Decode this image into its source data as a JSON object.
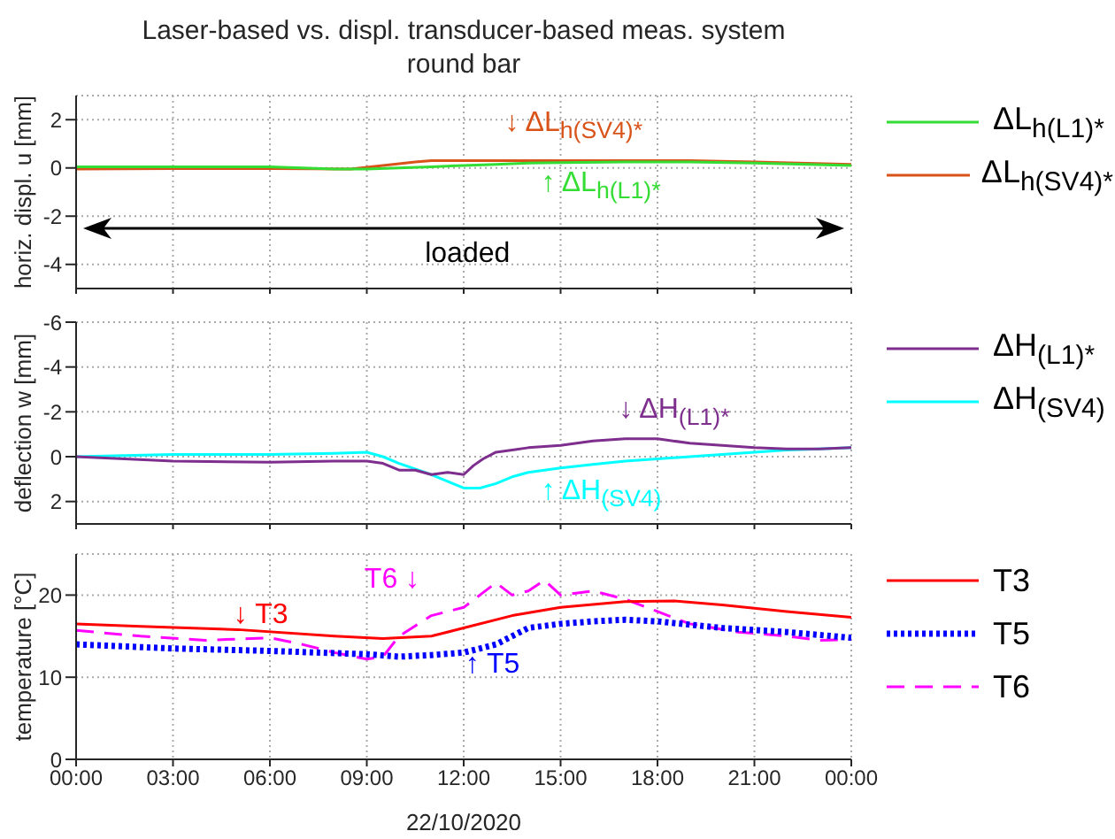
{
  "chart_data": [
    {
      "type": "line",
      "title": "Laser-based vs. displ. transducer-based meas. system round bar",
      "ylabel": "horiz. displ. u [mm]",
      "xlim": [
        0,
        24
      ],
      "xticks": [
        {
          "value": 0,
          "label": null
        },
        {
          "value": 3,
          "label": null
        },
        {
          "value": 6,
          "label": null
        },
        {
          "value": 9,
          "label": null
        },
        {
          "value": 12,
          "label": null
        },
        {
          "value": 15,
          "label": null
        },
        {
          "value": 18,
          "label": null
        },
        {
          "value": 21,
          "label": null
        },
        {
          "value": 24,
          "label": null
        }
      ],
      "ylim": [
        -5,
        3
      ],
      "yticks": [
        -4,
        -2,
        0,
        2
      ],
      "grid": true,
      "legend": "right",
      "tick_labels": "y",
      "line_style": "solid",
      "marker": "none",
      "series": [
        {
          "name": "ΔL$_{h(L1)*}$",
          "color": "#33dd33",
          "x": [
            0,
            3,
            6,
            8,
            9,
            10,
            11,
            12,
            13,
            14,
            15,
            17,
            19,
            21,
            24
          ],
          "values": [
            0.05,
            0.05,
            0.05,
            -0.05,
            -0.05,
            0,
            0.05,
            0.1,
            0.15,
            0.2,
            0.22,
            0.25,
            0.25,
            0.2,
            0.1
          ]
        },
        {
          "name": "ΔL$_{h(SV4)*}$",
          "color": "#d95319",
          "x": [
            0,
            3,
            6,
            8.5,
            9.5,
            10.5,
            11,
            12,
            14,
            16,
            17,
            19,
            21,
            24
          ],
          "values": [
            -0.05,
            -0.03,
            -0.03,
            -0.05,
            0.1,
            0.25,
            0.3,
            0.3,
            0.3,
            0.3,
            0.3,
            0.3,
            0.25,
            0.15
          ]
        }
      ],
      "annotations": [
        "↓ ΔL$_{h(SV4)*}$",
        "↑ ΔL$_{h(L1)*}$",
        "loaded"
      ]
    },
    {
      "type": "line",
      "ylabel": "deflection w [mm]",
      "xlim": [
        0,
        24
      ],
      "xticks": [
        {
          "value": 0,
          "label": null
        },
        {
          "value": 3,
          "label": null
        },
        {
          "value": 6,
          "label": null
        },
        {
          "value": 9,
          "label": null
        },
        {
          "value": 12,
          "label": null
        },
        {
          "value": 15,
          "label": null
        },
        {
          "value": 18,
          "label": null
        },
        {
          "value": 21,
          "label": null
        },
        {
          "value": 24,
          "label": null
        }
      ],
      "ylim": [
        3,
        -6
      ],
      "yticks": [
        -6,
        -4,
        -2,
        0,
        2
      ],
      "grid": true,
      "legend": "right",
      "tick_labels": "y",
      "line_style": "solid",
      "marker": "none",
      "series": [
        {
          "name": "ΔH$_{(L1)*}$",
          "color": "#7e2f8e",
          "x": [
            0,
            1.5,
            3,
            6,
            8,
            9,
            9.5,
            10,
            10.5,
            11,
            11.5,
            12,
            12.3,
            12.6,
            13,
            13.5,
            14,
            15,
            16,
            17,
            18,
            19,
            20,
            21,
            22,
            23,
            24
          ],
          "values": [
            0,
            0.1,
            0.2,
            0.25,
            0.2,
            0.2,
            0.3,
            0.6,
            0.6,
            0.8,
            0.7,
            0.8,
            0.4,
            0.1,
            -0.2,
            -0.3,
            -0.4,
            -0.5,
            -0.7,
            -0.8,
            -0.8,
            -0.6,
            -0.5,
            -0.4,
            -0.35,
            -0.35,
            -0.4
          ]
        },
        {
          "name": "ΔH$_{(SV4)}$",
          "color": "#00ffff",
          "x": [
            0,
            3,
            6,
            8,
            9,
            9.5,
            10,
            11,
            11.5,
            12,
            12.5,
            13,
            13.5,
            14,
            15,
            16,
            17,
            18,
            19,
            20,
            21,
            22,
            23,
            24
          ],
          "values": [
            0,
            -0.1,
            -0.1,
            -0.15,
            -0.2,
            0,
            0.3,
            0.8,
            1.1,
            1.4,
            1.4,
            1.2,
            0.9,
            0.7,
            0.5,
            0.35,
            0.2,
            0.1,
            0,
            -0.1,
            -0.2,
            -0.3,
            -0.35,
            -0.4
          ]
        }
      ],
      "annotations": [
        "↓ ΔH$_{(L1)*}$",
        "↑ ΔH$_{(SV4)}$"
      ]
    },
    {
      "type": "line",
      "ylabel": "temperature [°C]",
      "xlabel": "22/10/2020",
      "xlim": [
        0,
        24
      ],
      "xticks": [
        {
          "value": 0,
          "label": "00:00"
        },
        {
          "value": 3,
          "label": "03:00"
        },
        {
          "value": 6,
          "label": "06:00"
        },
        {
          "value": 9,
          "label": "09:00"
        },
        {
          "value": 12,
          "label": "12:00"
        },
        {
          "value": 15,
          "label": "15:00"
        },
        {
          "value": 18,
          "label": "18:00"
        },
        {
          "value": 21,
          "label": "21:00"
        },
        {
          "value": 24,
          "label": "00:00"
        }
      ],
      "ylim": [
        0,
        25
      ],
      "yticks": [
        0,
        10,
        20
      ],
      "grid": true,
      "legend": "right",
      "marker": "none",
      "series": [
        {
          "name": "T3",
          "color": "#ff0000",
          "line_style": "solid",
          "x": [
            0,
            2,
            5,
            8,
            9.5,
            11,
            12,
            13.5,
            15,
            17,
            18.5,
            20,
            22,
            24
          ],
          "values": [
            16.5,
            16.2,
            15.8,
            15,
            14.7,
            15,
            16,
            17.5,
            18.5,
            19.2,
            19.3,
            18.8,
            18,
            17.3
          ]
        },
        {
          "name": "T5",
          "color": "#0000ff",
          "line_style": "dotted",
          "x": [
            0,
            3,
            6,
            9,
            10,
            11,
            12,
            13,
            14,
            15,
            16,
            17,
            18,
            20,
            22,
            24
          ],
          "values": [
            14,
            13.5,
            13.2,
            12.8,
            12.5,
            12.7,
            13,
            14,
            16,
            16.5,
            16.8,
            17,
            16.8,
            16,
            15.5,
            14.8
          ]
        },
        {
          "name": "T6",
          "color": "#ff00ff",
          "line_style": "dashed",
          "x": [
            0,
            2,
            4,
            6,
            7,
            8,
            9,
            9.5,
            10,
            11,
            12,
            12.5,
            13,
            13.5,
            14,
            14.5,
            15,
            16,
            17,
            18,
            19,
            20.5,
            22,
            23,
            24
          ],
          "values": [
            15.7,
            15,
            14.5,
            14.8,
            14,
            13,
            12.2,
            12.5,
            15,
            17.5,
            18.5,
            20,
            21.5,
            20,
            20.5,
            21.8,
            20,
            20.5,
            19.5,
            18,
            16.5,
            15.5,
            15,
            14.5,
            14.6
          ]
        }
      ],
      "annotations": [
        "↓ T3",
        "T6 ↓",
        "↑ T5"
      ]
    }
  ]
}
